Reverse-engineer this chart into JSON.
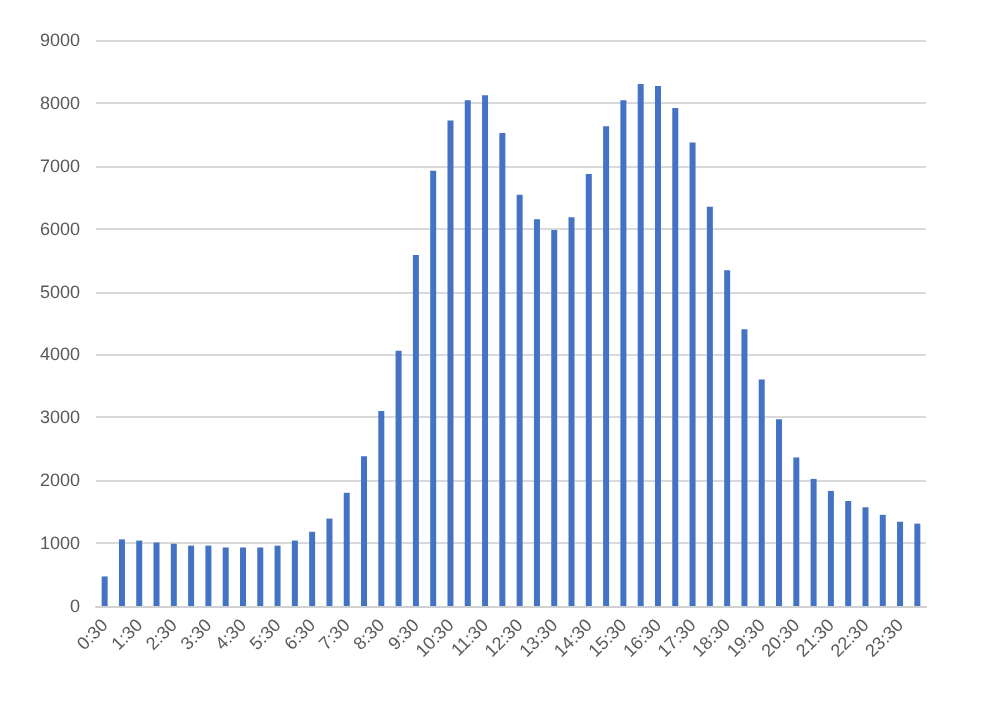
{
  "chart_data": {
    "type": "bar",
    "categories": [
      "0:30",
      null,
      "1:30",
      null,
      "2:30",
      null,
      "3:30",
      null,
      "4:30",
      null,
      "5:30",
      null,
      "6:30",
      null,
      "7:30",
      null,
      "8:30",
      null,
      "9:30",
      null,
      "10:30",
      null,
      "11:30",
      null,
      "12:30",
      null,
      "13:30",
      null,
      "14:30",
      null,
      "15:30",
      null,
      "16:30",
      null,
      "17:30",
      null,
      "18:30",
      null,
      "19:30",
      null,
      "20:30",
      null,
      "21:30",
      null,
      "22:30",
      null,
      "23:30",
      null
    ],
    "series": [
      {
        "color": "#4472c4",
        "values": [
          470,
          1060,
          1040,
          1010,
          990,
          960,
          960,
          930,
          930,
          930,
          960,
          1040,
          1180,
          1390,
          1800,
          2380,
          3100,
          4060,
          5580,
          6920,
          7720,
          8040,
          8120,
          7520,
          6540,
          6150,
          5980,
          6180,
          6870,
          7630,
          8040,
          8300,
          8270,
          7920,
          7370,
          6350,
          5340,
          4400,
          3600,
          2970,
          2360,
          2020,
          1830,
          1670,
          1570,
          1450,
          1340,
          1310
        ]
      }
    ],
    "ylim": [
      0,
      9000
    ],
    "yticks": [
      0,
      1000,
      2000,
      3000,
      4000,
      5000,
      6000,
      7000,
      8000,
      9000
    ],
    "grid": "y"
  }
}
